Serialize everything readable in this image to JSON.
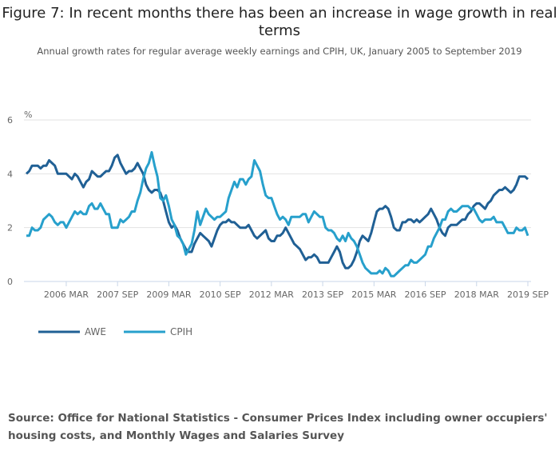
{
  "chart_data": {
    "type": "line",
    "title": "Figure 7: In recent months there has been an increase in wage growth in real terms",
    "subtitle": "Annual growth rates for regular average weekly earnings and CPIH, UK, January 2005 to September 2019",
    "ylabel": "%",
    "xlabel": "",
    "ylim": [
      0,
      6
    ],
    "y_ticks": [
      "0",
      "2",
      "4",
      "6"
    ],
    "x_tick_labels": [
      "2006 MAR",
      "2007 SEP",
      "2009 MAR",
      "2010 SEP",
      "2012 MAR",
      "2013 SEP",
      "2015 MAR",
      "2016 SEP",
      "2018 MAR",
      "2019 SEP"
    ],
    "x_tick_dates": [
      "2006-03",
      "2007-09",
      "2009-03",
      "2010-09",
      "2012-03",
      "2013-09",
      "2015-03",
      "2016-09",
      "2018-03",
      "2019-09"
    ],
    "x_range": [
      "2005-01",
      "2019-09"
    ],
    "frequency": "monthly",
    "grid": "horizontal",
    "legend_position": "bottom-left",
    "series": [
      {
        "name": "AWE",
        "color": "#206095",
        "values": [
          4.0,
          4.1,
          4.3,
          4.3,
          4.3,
          4.2,
          4.3,
          4.3,
          4.5,
          4.4,
          4.3,
          4.0,
          4.0,
          4.0,
          4.0,
          3.9,
          3.8,
          4.0,
          3.9,
          3.7,
          3.5,
          3.7,
          3.8,
          4.1,
          4.0,
          3.9,
          3.9,
          4.0,
          4.1,
          4.1,
          4.3,
          4.6,
          4.7,
          4.4,
          4.2,
          4.0,
          4.1,
          4.1,
          4.2,
          4.4,
          4.2,
          4.0,
          3.6,
          3.4,
          3.3,
          3.4,
          3.4,
          3.3,
          3.0,
          2.6,
          2.2,
          2.0,
          2.1,
          1.9,
          1.6,
          1.4,
          1.2,
          1.1,
          1.1,
          1.4,
          1.6,
          1.8,
          1.7,
          1.6,
          1.5,
          1.3,
          1.6,
          1.9,
          2.1,
          2.2,
          2.2,
          2.3,
          2.2,
          2.2,
          2.1,
          2.0,
          2.0,
          2.0,
          2.1,
          1.9,
          1.7,
          1.6,
          1.7,
          1.8,
          1.9,
          1.6,
          1.5,
          1.5,
          1.7,
          1.7,
          1.8,
          2.0,
          1.8,
          1.6,
          1.4,
          1.3,
          1.2,
          1.0,
          0.8,
          0.9,
          0.9,
          1.0,
          0.9,
          0.7,
          0.7,
          0.7,
          0.7,
          0.9,
          1.1,
          1.3,
          1.1,
          0.7,
          0.5,
          0.5,
          0.6,
          0.8,
          1.1,
          1.5,
          1.7,
          1.6,
          1.5,
          1.8,
          2.2,
          2.6,
          2.7,
          2.7,
          2.8,
          2.7,
          2.4,
          2.0,
          1.9,
          1.9,
          2.2,
          2.2,
          2.3,
          2.3,
          2.2,
          2.3,
          2.2,
          2.3,
          2.4,
          2.5,
          2.7,
          2.5,
          2.3,
          2.0,
          1.8,
          1.7,
          2.0,
          2.1,
          2.1,
          2.1,
          2.2,
          2.3,
          2.3,
          2.5,
          2.6,
          2.8,
          2.9,
          2.9,
          2.8,
          2.7,
          2.9,
          3.0,
          3.2,
          3.3,
          3.4,
          3.4,
          3.5,
          3.4,
          3.3,
          3.4,
          3.6,
          3.9,
          3.9,
          3.9,
          3.8
        ]
      },
      {
        "name": "CPIH",
        "color": "#27a0cc",
        "values": [
          1.7,
          1.7,
          2.0,
          1.9,
          1.9,
          2.0,
          2.3,
          2.4,
          2.5,
          2.4,
          2.2,
          2.1,
          2.2,
          2.2,
          2.0,
          2.2,
          2.4,
          2.6,
          2.5,
          2.6,
          2.5,
          2.5,
          2.8,
          2.9,
          2.7,
          2.7,
          2.9,
          2.7,
          2.5,
          2.5,
          2.0,
          2.0,
          2.0,
          2.3,
          2.2,
          2.3,
          2.4,
          2.6,
          2.6,
          3.0,
          3.3,
          3.8,
          4.2,
          4.4,
          4.8,
          4.3,
          3.9,
          3.1,
          3.0,
          3.2,
          2.8,
          2.3,
          2.1,
          1.7,
          1.6,
          1.4,
          1.0,
          1.2,
          1.4,
          1.9,
          2.6,
          2.1,
          2.4,
          2.7,
          2.5,
          2.4,
          2.3,
          2.4,
          2.4,
          2.5,
          2.6,
          3.1,
          3.4,
          3.7,
          3.5,
          3.8,
          3.8,
          3.6,
          3.8,
          3.9,
          4.5,
          4.3,
          4.1,
          3.6,
          3.2,
          3.1,
          3.1,
          2.8,
          2.5,
          2.3,
          2.4,
          2.3,
          2.1,
          2.4,
          2.4,
          2.4,
          2.4,
          2.5,
          2.5,
          2.2,
          2.4,
          2.6,
          2.5,
          2.4,
          2.4,
          2.0,
          1.9,
          1.9,
          1.8,
          1.6,
          1.5,
          1.7,
          1.5,
          1.8,
          1.6,
          1.5,
          1.3,
          1.0,
          0.7,
          0.5,
          0.4,
          0.3,
          0.3,
          0.3,
          0.4,
          0.3,
          0.5,
          0.4,
          0.2,
          0.2,
          0.3,
          0.4,
          0.5,
          0.6,
          0.6,
          0.8,
          0.7,
          0.7,
          0.8,
          0.9,
          1.0,
          1.3,
          1.3,
          1.6,
          1.8,
          2.0,
          2.3,
          2.3,
          2.6,
          2.7,
          2.6,
          2.6,
          2.7,
          2.8,
          2.8,
          2.8,
          2.7,
          2.7,
          2.5,
          2.3,
          2.2,
          2.3,
          2.3,
          2.3,
          2.4,
          2.2,
          2.2,
          2.2,
          2.0,
          1.8,
          1.8,
          1.8,
          2.0,
          1.9,
          1.9,
          2.0,
          1.7
        ]
      }
    ]
  },
  "source": "Source: Office for National Statistics - Consumer Prices Index including owner occupiers' housing costs, and Monthly Wages and Salaries Survey"
}
